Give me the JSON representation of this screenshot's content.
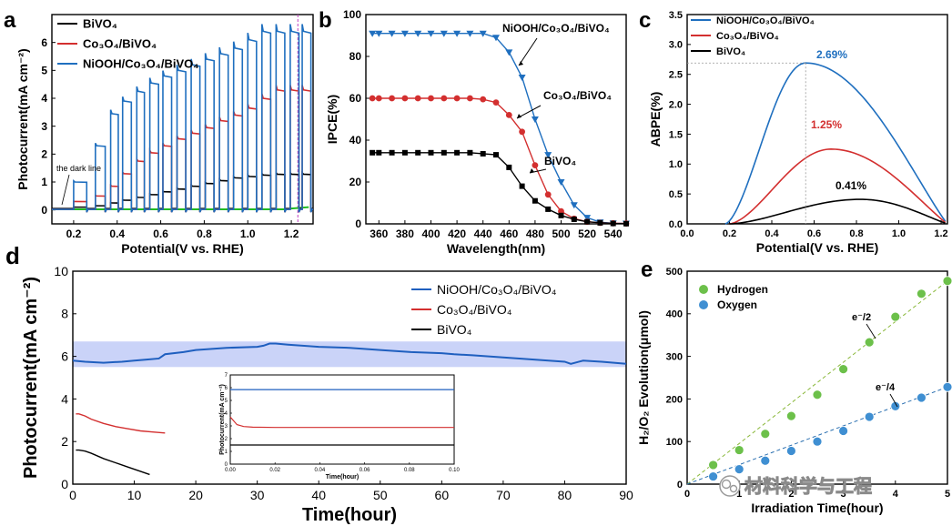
{
  "figure": {
    "watermark": "材料科学与工程"
  },
  "chart_data": [
    {
      "id": "a",
      "panel_label": "a",
      "type": "line",
      "title": "",
      "xlabel": "Potential(V vs. RHE)",
      "ylabel": "Photocurrent(mA cm⁻²)",
      "xlim": [
        0.1,
        1.3
      ],
      "ylim": [
        -0.5,
        7.0
      ],
      "xticks": [
        0.2,
        0.4,
        0.6,
        0.8,
        1.0,
        1.2
      ],
      "xticklabels": [
        "0.2",
        "0.4",
        "0.6",
        "0.8",
        "1.0",
        "1.2"
      ],
      "yticks": [
        0,
        1,
        2,
        3,
        4,
        5,
        6
      ],
      "yticklabels": [
        "0",
        "1",
        "2",
        "3",
        "4",
        "5",
        "6"
      ],
      "annotation": "the dark line",
      "vline_x": 1.23,
      "chop_periods": [
        [
          0.2,
          0.26
        ],
        [
          0.3,
          0.345
        ],
        [
          0.37,
          0.405
        ],
        [
          0.425,
          0.465
        ],
        [
          0.49,
          0.525
        ],
        [
          0.55,
          0.59
        ],
        [
          0.61,
          0.65
        ],
        [
          0.675,
          0.715
        ],
        [
          0.74,
          0.78
        ],
        [
          0.805,
          0.845
        ],
        [
          0.87,
          0.91
        ],
        [
          0.935,
          0.975
        ],
        [
          1.0,
          1.04
        ],
        [
          1.065,
          1.105
        ],
        [
          1.13,
          1.17
        ],
        [
          1.195,
          1.235
        ],
        [
          1.25,
          1.29
        ]
      ],
      "series": [
        {
          "name": "BiVO₄",
          "color": "#000000",
          "light": [
            0.1,
            0.15,
            0.25,
            0.35,
            0.45,
            0.55,
            0.65,
            0.75,
            0.85,
            0.95,
            1.05,
            1.15,
            1.2,
            1.25,
            1.28
          ]
        },
        {
          "name": "Co₃O₄/BiVO₄",
          "color": "#d32f2f",
          "light": [
            0.3,
            0.5,
            0.85,
            1.3,
            1.75,
            2.05,
            2.3,
            2.55,
            2.75,
            2.95,
            3.2,
            3.4,
            3.65,
            4.0,
            4.3
          ]
        },
        {
          "name": "NiOOH/Co₃O₄/BiVO₄",
          "color": "#1f6fbf",
          "light": [
            1.0,
            2.3,
            3.45,
            3.9,
            4.25,
            4.55,
            4.8,
            5.0,
            5.2,
            5.4,
            5.6,
            5.8,
            6.1,
            6.4,
            6.4
          ]
        }
      ],
      "dark_line_color": "#22bb22",
      "vline_color": "#c040c0"
    },
    {
      "id": "b",
      "panel_label": "b",
      "type": "line",
      "xlabel": "Wavelength(nm)",
      "ylabel": "IPCE(%)",
      "xlim": [
        350,
        550
      ],
      "ylim": [
        0,
        100
      ],
      "xticks": [
        360,
        380,
        400,
        420,
        440,
        460,
        480,
        500,
        520,
        540
      ],
      "xticklabels": [
        "360",
        "380",
        "400",
        "420",
        "440",
        "460",
        "480",
        "500",
        "520",
        "540"
      ],
      "yticks": [
        0,
        20,
        40,
        60,
        80,
        100
      ],
      "yticklabels": [
        "0",
        "20",
        "40",
        "60",
        "80",
        "100"
      ],
      "x": [
        355,
        360,
        370,
        380,
        390,
        400,
        410,
        420,
        430,
        440,
        450,
        460,
        470,
        480,
        490,
        500,
        510,
        520,
        530,
        540,
        550
      ],
      "series": [
        {
          "name": "NiOOH/Co₃O₄/BiVO₄",
          "color": "#1f6fbf",
          "marker": "triangle-down",
          "values": [
            91,
            91,
            91,
            91,
            91,
            91,
            91,
            91,
            91,
            91,
            89,
            82,
            70,
            50,
            33,
            20,
            9,
            3,
            0.8,
            0.3,
            0.2
          ]
        },
        {
          "name": "Co₃O₄/BiVO₄",
          "color": "#d32f2f",
          "marker": "circle",
          "values": [
            60,
            60,
            60,
            60,
            60,
            60,
            60,
            60,
            60,
            59.5,
            58,
            52,
            44,
            28,
            14,
            6,
            2.5,
            1,
            0.5,
            0.3,
            0.2
          ]
        },
        {
          "name": "BiVO₄",
          "color": "#000000",
          "marker": "square",
          "values": [
            34,
            34,
            34,
            34,
            34,
            34,
            34,
            34,
            34,
            33.5,
            33,
            27,
            18,
            11,
            7,
            4,
            2.2,
            1,
            0.5,
            0.2,
            0.1
          ]
        }
      ],
      "labels": [
        {
          "text": "NiOOH/Co₃O₄/BiVO₄",
          "series": 0
        },
        {
          "text": "Co₃O₄/BiVO₄",
          "series": 1
        },
        {
          "text": "BiVO₄",
          "series": 2
        }
      ]
    },
    {
      "id": "c",
      "panel_label": "c",
      "type": "line",
      "xlabel": "Potential(V vs. RHE)",
      "ylabel": "ABPE(%)",
      "xlim": [
        0,
        1.23
      ],
      "ylim": [
        0,
        3.5
      ],
      "xticks": [
        0.0,
        0.2,
        0.4,
        0.6,
        0.8,
        1.0,
        1.2
      ],
      "xticklabels": [
        "0.0",
        "0.2",
        "0.4",
        "0.6",
        "0.8",
        "1.0",
        "1.2"
      ],
      "yticks": [
        0.0,
        0.5,
        1.0,
        1.5,
        2.0,
        2.5,
        3.0,
        3.5
      ],
      "yticklabels": [
        "0.0",
        "0.5",
        "1.0",
        "1.5",
        "2.0",
        "2.5",
        "3.0",
        "3.5"
      ],
      "series": [
        {
          "name": "NiOOH/Co₃O₄/BiVO₄",
          "color": "#1f6fbf",
          "start": 0.18,
          "peak_x": 0.56,
          "peak": 2.69,
          "end": 1.23
        },
        {
          "name": "Co₃O₄/BiVO₄",
          "color": "#d32f2f",
          "start": 0.2,
          "peak_x": 0.68,
          "peak": 1.25,
          "end": 1.23
        },
        {
          "name": "BiVO₄",
          "color": "#000000",
          "start": 0.2,
          "peak_x": 0.82,
          "peak": 0.41,
          "end": 1.23
        }
      ],
      "annotations": [
        {
          "text": "2.69%",
          "color": "#1f6fbf"
        },
        {
          "text": "1.25%",
          "color": "#d32f2f"
        },
        {
          "text": "0.41%",
          "color": "#000000"
        }
      ]
    },
    {
      "id": "d",
      "panel_label": "d",
      "type": "line",
      "xlabel": "Time(hour)",
      "ylabel": "Photocurrent(mA cm⁻²)",
      "xlim": [
        0,
        90
      ],
      "ylim": [
        0,
        10
      ],
      "xticks": [
        0,
        10,
        20,
        30,
        40,
        50,
        60,
        70,
        80,
        90
      ],
      "xticklabels": [
        "0",
        "10",
        "20",
        "30",
        "40",
        "50",
        "60",
        "70",
        "80",
        "90"
      ],
      "yticks": [
        0,
        2,
        4,
        6,
        8,
        10
      ],
      "yticklabels": [
        "0",
        "2",
        "4",
        "6",
        "8",
        "10"
      ],
      "band": {
        "from": 5.5,
        "to": 6.7,
        "color": "#b8c4f5"
      },
      "series": [
        {
          "name": "NiOOH/Co₃O₄/BiVO₄",
          "color": "#1f5fbf",
          "x": [
            0,
            2,
            5,
            8,
            10,
            12,
            14,
            15,
            18,
            20,
            25,
            30,
            31,
            32,
            33,
            35,
            40,
            45,
            50,
            55,
            60,
            62,
            65,
            70,
            75,
            80,
            81,
            83,
            86,
            90
          ],
          "values": [
            5.8,
            5.75,
            5.7,
            5.75,
            5.8,
            5.85,
            5.9,
            6.1,
            6.2,
            6.3,
            6.4,
            6.45,
            6.5,
            6.6,
            6.6,
            6.55,
            6.45,
            6.4,
            6.3,
            6.2,
            6.15,
            6.1,
            6.05,
            5.95,
            5.85,
            5.75,
            5.65,
            5.8,
            5.75,
            5.65
          ]
        },
        {
          "name": "Co₃O₄/BiVO₄",
          "color": "#d32f2f",
          "x": [
            0.5,
            1,
            2,
            3,
            5,
            7,
            9,
            11,
            13,
            15
          ],
          "values": [
            3.3,
            3.3,
            3.2,
            3.05,
            2.85,
            2.7,
            2.6,
            2.5,
            2.45,
            2.4
          ]
        },
        {
          "name": "BiVO₄",
          "color": "#000000",
          "x": [
            0.5,
            1,
            2,
            3,
            5,
            7,
            9,
            11,
            12.5
          ],
          "values": [
            1.6,
            1.6,
            1.55,
            1.45,
            1.2,
            1.0,
            0.8,
            0.6,
            0.45
          ]
        }
      ],
      "inset": {
        "xlabel": "Time(hour)",
        "ylabel": "Photocurrent(mA cm⁻²)",
        "xlim": [
          0,
          0.1
        ],
        "ylim": [
          0,
          7
        ],
        "xticks": [
          0.0,
          0.02,
          0.04,
          0.06,
          0.08,
          0.1
        ],
        "xticklabels": [
          "0.00",
          "0.02",
          "0.04",
          "0.06",
          "0.08",
          "0.10"
        ],
        "yticks": [
          0,
          1,
          2,
          3,
          4,
          5,
          6,
          7
        ],
        "yticklabels": [
          "0",
          "1",
          "2",
          "3",
          "4",
          "5",
          "6",
          "7"
        ],
        "series": [
          {
            "color": "#1f5fbf",
            "x": [
              0,
              0.1
            ],
            "values": [
              5.85,
              5.85
            ]
          },
          {
            "color": "#d32f2f",
            "x": [
              0,
              0.001,
              0.003,
              0.006,
              0.01,
              0.02,
              0.1
            ],
            "values": [
              3.7,
              3.5,
              3.1,
              2.95,
              2.9,
              2.88,
              2.88
            ]
          },
          {
            "color": "#000000",
            "x": [
              0,
              0.1
            ],
            "values": [
              1.5,
              1.5
            ]
          }
        ]
      }
    },
    {
      "id": "e",
      "panel_label": "e",
      "type": "scatter",
      "xlabel": "Irradiation Time(hour)",
      "ylabel": "H₂/O₂ Evolution(μmol)",
      "xlim": [
        0,
        5
      ],
      "ylim": [
        0,
        500
      ],
      "xticks": [
        0,
        1,
        2,
        3,
        4,
        5
      ],
      "xticklabels": [
        "0",
        "1",
        "2",
        "3",
        "4",
        "5"
      ],
      "yticks": [
        0,
        100,
        200,
        300,
        400,
        500
      ],
      "yticklabels": [
        "0",
        "100",
        "200",
        "300",
        "400",
        "500"
      ],
      "series": [
        {
          "name": "Hydrogen",
          "color": "#6cc04a",
          "fit_color": "#8ab83a",
          "x": [
            0,
            0.5,
            1,
            1.5,
            2,
            2.5,
            3,
            3.5,
            4,
            4.5,
            5
          ],
          "values": [
            0,
            45,
            80,
            118,
            160,
            210,
            270,
            333,
            393,
            447,
            477
          ]
        },
        {
          "name": "Oxygen",
          "color": "#3f8fd2",
          "fit_color": "#2a6fb0",
          "x": [
            0,
            0.5,
            1,
            1.5,
            2,
            2.5,
            3,
            3.5,
            4,
            4.5,
            5
          ],
          "values": [
            0,
            18,
            35,
            55,
            78,
            100,
            125,
            158,
            183,
            203,
            228
          ]
        }
      ],
      "annotations": [
        {
          "text": "e⁻/2",
          "series": 0
        },
        {
          "text": "e⁻/4",
          "series": 1
        }
      ]
    }
  ]
}
